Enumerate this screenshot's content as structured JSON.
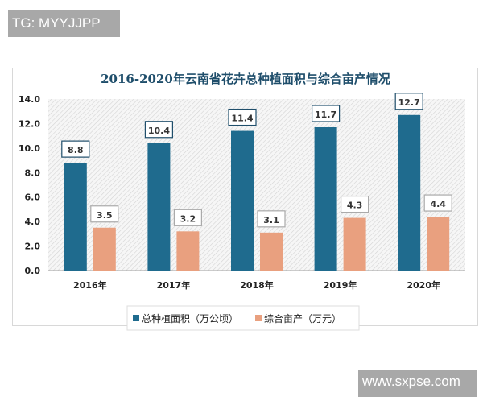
{
  "watermarks": {
    "top_left": "TG: MYYJJPP",
    "bottom_right": "www.sxpse.com"
  },
  "chart_data": {
    "type": "bar",
    "title": "2016-2020年云南省花卉总种植面积与综合亩产情况",
    "categories": [
      "2016年",
      "2017年",
      "2018年",
      "2019年",
      "2020年"
    ],
    "series": [
      {
        "name": "总种植面积（万公顷）",
        "values": [
          8.8,
          10.4,
          11.4,
          11.7,
          12.7
        ],
        "color": "#1f6b8e"
      },
      {
        "name": "综合亩产（万元）",
        "values": [
          3.5,
          3.2,
          3.1,
          4.3,
          4.4
        ],
        "color": "#e9a07f"
      }
    ],
    "yticks": [
      "0.0",
      "2.0",
      "4.0",
      "6.0",
      "8.0",
      "10.0",
      "12.0",
      "14.0"
    ],
    "ylim": [
      0,
      14
    ],
    "legend": "bottom",
    "grid": false
  }
}
